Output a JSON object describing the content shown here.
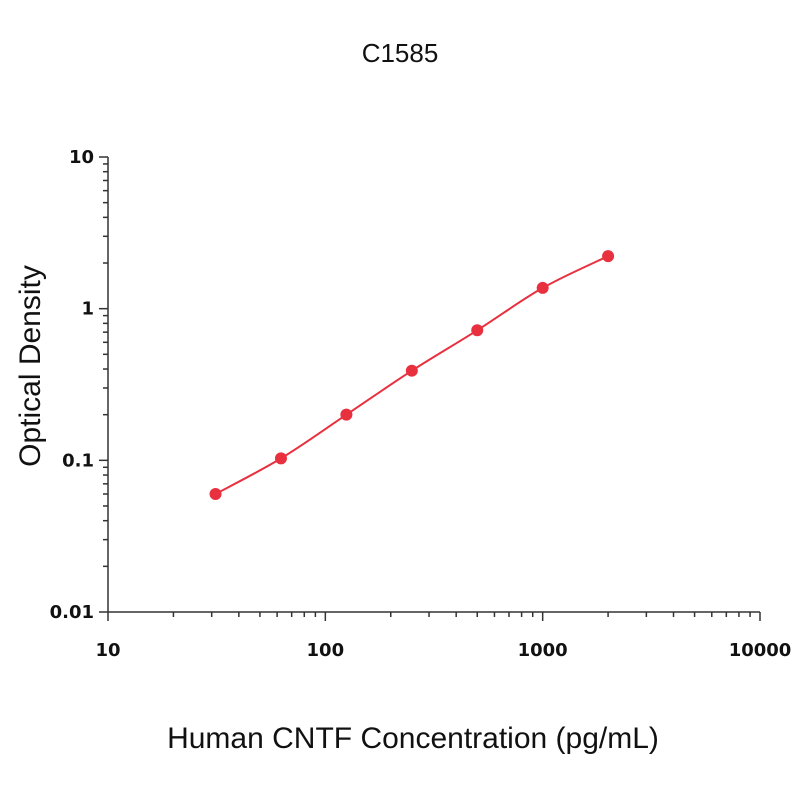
{
  "chart_data": {
    "type": "scatter",
    "title": "C1585",
    "xlabel": "Human CNTF Concentration (pg/mL)",
    "ylabel": "Optical Density",
    "x_scale": "log",
    "y_scale": "log",
    "xlim": [
      10,
      10000
    ],
    "ylim": [
      0.01,
      10
    ],
    "x_ticks": [
      "10",
      "100",
      "1000",
      "10000"
    ],
    "y_ticks": [
      "0.01",
      "0.1",
      "1",
      "10"
    ],
    "grid": false,
    "color": "#e8303f",
    "series": [
      {
        "x": [
          31.25,
          62.5,
          125,
          250,
          500,
          1000,
          2000
        ],
        "y": [
          0.06,
          0.103,
          0.2,
          0.39,
          0.72,
          1.37,
          2.22
        ],
        "fit_line": true
      }
    ]
  }
}
